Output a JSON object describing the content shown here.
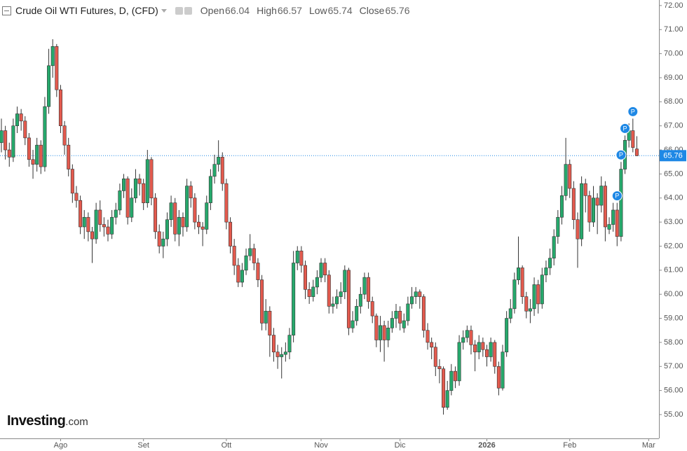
{
  "header": {
    "title": "Crude Oil WTI Futures, D, (CFD)",
    "labels": [
      "Open",
      "High",
      "Low",
      "Close"
    ]
  },
  "logo": {
    "name": "Investing",
    "suffix": ".com"
  },
  "chart_data": {
    "type": "candlestick",
    "up_color": "#26a96c",
    "down_color": "#e35a4e",
    "last_price_color": "#1e88e5",
    "marker_color": "#1e88e5",
    "ylim": [
      54.01,
      72.23
    ],
    "yticks": [
      {
        "value": 55,
        "label": "55.00"
      },
      {
        "value": 56,
        "label": "56.00"
      },
      {
        "value": 57,
        "label": "57.00"
      },
      {
        "value": 58,
        "label": "58.00"
      },
      {
        "value": 59,
        "label": "59.00"
      },
      {
        "value": 60,
        "label": "60.00"
      },
      {
        "value": 61,
        "label": "61.00"
      },
      {
        "value": 62,
        "label": "62.00"
      },
      {
        "value": 63,
        "label": "63.00"
      },
      {
        "value": 64,
        "label": "64.00"
      },
      {
        "value": 65,
        "label": "65.00"
      },
      {
        "value": 66,
        "label": "66.00"
      },
      {
        "value": 67,
        "label": "67.00"
      },
      {
        "value": 68,
        "label": "68.00"
      },
      {
        "value": 69,
        "label": "69.00"
      },
      {
        "value": 70,
        "label": "70.00"
      },
      {
        "value": 71,
        "label": "71.00"
      },
      {
        "value": 72,
        "label": "72.00"
      }
    ],
    "xticks": [
      {
        "value": 15,
        "label": "Ago"
      },
      {
        "value": 36,
        "label": "Set"
      },
      {
        "value": 57,
        "label": "Ott"
      },
      {
        "value": 81,
        "label": "Nov"
      },
      {
        "value": 101,
        "label": "Dic"
      },
      {
        "value": 123,
        "label": "2026"
      },
      {
        "value": 144,
        "label": "Feb"
      },
      {
        "value": 164,
        "label": "Mar"
      }
    ],
    "markers": [
      {
        "index": 156,
        "label": "P"
      },
      {
        "index": 157,
        "label": "P"
      },
      {
        "index": 158,
        "label": "P"
      },
      {
        "index": 160,
        "label": "P"
      }
    ],
    "open": [
      66.3,
      66.8,
      66.0,
      65.7,
      67.0,
      67.5,
      67.2,
      66.5,
      65.6,
      65.4,
      66.2,
      65.3,
      67.8,
      69.5,
      70.3,
      68.5,
      67.0,
      66.2,
      65.2,
      64.2,
      63.9,
      62.8,
      63.2,
      62.6,
      62.3,
      63.5,
      62.9,
      62.8,
      62.5,
      63.2,
      63.5,
      64.3,
      64.8,
      63.2,
      64.0,
      64.8,
      64.6,
      63.8,
      65.6,
      64.0,
      62.6,
      62.0,
      62.3,
      63.1,
      63.8,
      62.5,
      63.2,
      62.8,
      64.5,
      64.0,
      63.0,
      62.8,
      62.7,
      63.8,
      64.9,
      65.4,
      65.7,
      64.6,
      63.0,
      62.0,
      61.2,
      60.5,
      61.0,
      61.6,
      61.9,
      61.3,
      60.6,
      58.8,
      59.3,
      58.3,
      57.6,
      57.4,
      57.5,
      57.6,
      58.3,
      61.3,
      61.8,
      61.2,
      60.2,
      59.9,
      60.3,
      60.7,
      61.3,
      60.8,
      59.5,
      59.6,
      59.9,
      60.1,
      61.0,
      58.6,
      58.9,
      59.5,
      60.0,
      60.7,
      59.7,
      59.1,
      58.1,
      58.7,
      58.1,
      58.6,
      59.0,
      59.3,
      58.6,
      58.9,
      59.6,
      59.9,
      60.1,
      59.9,
      58.5,
      58.0,
      57.8,
      57.0,
      56.9,
      55.3,
      56.0,
      56.8,
      56.4,
      58.0,
      58.2,
      58.5,
      57.9,
      57.6,
      58.0,
      57.7,
      57.4,
      58.0,
      57.0,
      56.1,
      57.6,
      59.0,
      59.4,
      60.6,
      61.1,
      59.9,
      59.3,
      59.4,
      60.4,
      59.6,
      60.8,
      61.1,
      61.5,
      62.4,
      63.2,
      64.1,
      65.4,
      64.4,
      63.1,
      62.3,
      64.6,
      64.1,
      63.0,
      64.0,
      63.7,
      64.5,
      62.7,
      62.9,
      63.5,
      62.4,
      65.2,
      66.4,
      66.8,
      66.04
    ],
    "high": [
      67.3,
      67.0,
      66.3,
      67.3,
      67.8,
      67.7,
      67.4,
      66.7,
      66.0,
      66.5,
      66.4,
      68.2,
      70.2,
      70.6,
      70.4,
      68.7,
      67.2,
      66.5,
      65.4,
      64.5,
      64.1,
      63.5,
      63.4,
      62.8,
      63.8,
      63.9,
      63.2,
      63.1,
      63.5,
      63.8,
      64.6,
      65.0,
      64.9,
      64.4,
      65.2,
      65.0,
      64.8,
      66.0,
      65.7,
      64.2,
      62.9,
      62.6,
      63.4,
      64.1,
      64.0,
      63.5,
      63.4,
      64.8,
      64.7,
      64.2,
      63.3,
      63.0,
      64.1,
      65.2,
      65.8,
      66.4,
      65.9,
      64.8,
      63.2,
      62.3,
      61.5,
      61.3,
      61.9,
      62.5,
      62.1,
      61.5,
      60.8,
      59.8,
      59.5,
      58.6,
      57.9,
      57.8,
      58.0,
      58.6,
      61.8,
      62.0,
      62.0,
      61.4,
      60.5,
      60.6,
      61.0,
      61.5,
      61.5,
      61.0,
      59.9,
      60.2,
      60.5,
      61.2,
      61.1,
      59.3,
      59.8,
      60.3,
      60.9,
      60.9,
      59.9,
      59.2,
      59.1,
      58.9,
      58.9,
      59.3,
      59.6,
      59.5,
      59.2,
      59.9,
      60.3,
      60.3,
      60.2,
      60.0,
      58.8,
      58.2,
      58.0,
      57.3,
      57.0,
      56.4,
      57.1,
      57.0,
      58.3,
      58.5,
      58.7,
      58.7,
      58.1,
      58.3,
      58.2,
      57.9,
      58.2,
      58.1,
      57.2,
      57.9,
      59.3,
      59.8,
      60.9,
      62.4,
      61.2,
      60.1,
      59.8,
      60.7,
      60.6,
      61.1,
      61.4,
      61.9,
      62.7,
      63.5,
      64.5,
      66.5,
      65.6,
      64.7,
      63.4,
      64.9,
      64.8,
      64.3,
      64.5,
      64.2,
      64.9,
      64.7,
      63.2,
      63.8,
      63.8,
      65.5,
      66.6,
      67.1,
      67.3,
      66.57
    ],
    "low": [
      65.9,
      65.6,
      65.3,
      65.5,
      66.7,
      66.8,
      66.2,
      65.3,
      64.8,
      65.1,
      65.0,
      65.1,
      67.5,
      69.0,
      68.2,
      66.7,
      65.8,
      64.9,
      63.8,
      63.6,
      62.5,
      62.3,
      62.2,
      61.3,
      62.1,
      62.6,
      62.4,
      62.2,
      62.3,
      62.9,
      63.3,
      64.0,
      62.9,
      63.0,
      63.8,
      64.1,
      63.5,
      63.6,
      63.7,
      62.3,
      61.7,
      61.5,
      62.0,
      62.8,
      62.2,
      62.0,
      62.4,
      62.6,
      63.6,
      62.7,
      62.5,
      62.0,
      62.5,
      63.5,
      64.6,
      65.1,
      64.3,
      62.7,
      61.7,
      60.8,
      60.3,
      60.3,
      60.8,
      61.4,
      61.0,
      60.3,
      58.5,
      58.5,
      57.4,
      57.2,
      56.9,
      56.5,
      57.2,
      57.3,
      58.0,
      61.0,
      60.9,
      59.8,
      59.6,
      59.7,
      60.0,
      60.5,
      60.5,
      59.2,
      59.2,
      59.4,
      59.6,
      59.8,
      58.3,
      58.4,
      58.7,
      59.2,
      59.8,
      59.4,
      58.8,
      57.8,
      57.6,
      57.2,
      57.8,
      58.4,
      58.6,
      58.5,
      58.4,
      58.7,
      59.4,
      59.6,
      59.4,
      58.2,
      57.7,
      57.3,
      56.6,
      56.3,
      55.0,
      55.2,
      55.8,
      56.1,
      56.2,
      57.7,
      58.0,
      57.5,
      56.8,
      57.3,
      57.4,
      57.0,
      57.2,
      56.7,
      55.8,
      56.0,
      57.4,
      58.8,
      59.2,
      60.4,
      59.6,
      59.0,
      58.8,
      59.1,
      59.2,
      59.4,
      60.5,
      60.8,
      61.2,
      62.1,
      62.9,
      63.9,
      64.0,
      62.7,
      61.1,
      62.0,
      63.4,
      62.6,
      62.8,
      62.5,
      63.4,
      62.2,
      62.5,
      62.6,
      62.0,
      62.2,
      65.0,
      66.1,
      65.9,
      65.74
    ],
    "close": [
      66.8,
      66.0,
      65.7,
      67.0,
      67.5,
      67.2,
      66.5,
      65.6,
      65.4,
      66.2,
      65.3,
      67.8,
      69.5,
      70.3,
      68.5,
      67.0,
      66.2,
      65.2,
      64.2,
      63.9,
      62.8,
      63.2,
      62.6,
      62.3,
      63.5,
      62.9,
      62.8,
      62.5,
      63.2,
      63.5,
      64.3,
      64.8,
      63.2,
      64.0,
      64.8,
      64.6,
      63.8,
      65.6,
      64.0,
      62.6,
      62.0,
      62.3,
      63.1,
      63.8,
      62.5,
      63.2,
      62.8,
      64.5,
      64.0,
      63.0,
      62.8,
      62.7,
      63.8,
      64.9,
      65.4,
      65.7,
      64.6,
      63.0,
      62.0,
      61.2,
      60.5,
      61.0,
      61.6,
      61.9,
      61.3,
      60.6,
      58.8,
      59.3,
      58.3,
      57.6,
      57.4,
      57.5,
      57.6,
      58.3,
      61.3,
      61.8,
      61.2,
      60.2,
      59.9,
      60.3,
      60.7,
      61.3,
      60.8,
      59.5,
      59.6,
      59.9,
      60.1,
      61.0,
      58.6,
      58.9,
      59.5,
      60.0,
      60.7,
      59.7,
      59.1,
      58.1,
      58.7,
      58.1,
      58.6,
      59.0,
      59.3,
      58.8,
      58.9,
      59.6,
      59.9,
      60.1,
      59.9,
      58.5,
      58.0,
      57.8,
      57.0,
      56.9,
      55.3,
      56.0,
      56.8,
      56.4,
      58.0,
      58.2,
      58.5,
      57.9,
      57.6,
      58.0,
      57.7,
      57.4,
      58.0,
      57.0,
      56.1,
      57.6,
      59.0,
      59.4,
      60.6,
      61.1,
      59.9,
      59.3,
      59.4,
      60.4,
      59.6,
      60.8,
      61.1,
      61.5,
      62.4,
      63.2,
      64.1,
      65.4,
      64.4,
      63.1,
      62.3,
      64.6,
      64.1,
      63.0,
      64.0,
      63.7,
      64.5,
      62.8,
      62.9,
      63.5,
      62.4,
      65.2,
      66.4,
      66.8,
      66.1,
      65.76
    ]
  }
}
